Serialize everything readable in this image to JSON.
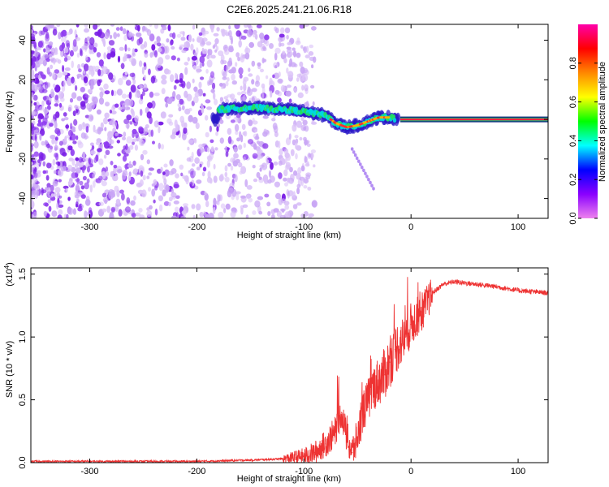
{
  "title": "C2E6.2025.241.21.06.R18",
  "chart_data": [
    {
      "type": "heatmap",
      "xlabel": "Height of straight line (km)",
      "ylabel": "Frequency (Hz)",
      "xlim": [
        -355,
        128
      ],
      "ylim": [
        -50,
        48
      ],
      "xticks": [
        -300,
        -200,
        -100,
        0,
        100
      ],
      "yticks": [
        -40,
        -20,
        0,
        20,
        40
      ],
      "colorbar": {
        "label": "Normalized spectral amplitude",
        "range": [
          0.0,
          1.0
        ],
        "ticks": [
          "0.0",
          "0.2",
          "0.4",
          "0.6",
          "0.8"
        ],
        "colormap": [
          "#ee82ee",
          "#8a00ff",
          "#0000ff",
          "#00ffff",
          "#00ff00",
          "#ffff00",
          "#ff8800",
          "#ff0000",
          "#ff00aa"
        ]
      },
      "features": {
        "noise_region_x": [
          -355,
          -120
        ],
        "signal_track": [
          {
            "x": -180,
            "y": 5
          },
          {
            "x": -150,
            "y": 6
          },
          {
            "x": -120,
            "y": 5
          },
          {
            "x": -100,
            "y": 4
          },
          {
            "x": -80,
            "y": 2
          },
          {
            "x": -70,
            "y": -2
          },
          {
            "x": -60,
            "y": -4
          },
          {
            "x": -50,
            "y": -3
          },
          {
            "x": -40,
            "y": -1
          },
          {
            "x": -30,
            "y": 1
          },
          {
            "x": -20,
            "y": 1
          },
          {
            "x": -10,
            "y": 0
          },
          {
            "x": 128,
            "y": 0
          }
        ],
        "branch": [
          {
            "x": -55,
            "y": -15
          },
          {
            "x": -35,
            "y": -35
          }
        ],
        "carrier_line_x": [
          -10,
          128
        ]
      }
    },
    {
      "type": "line",
      "xlabel": "Height of straight line (km)",
      "ylabel": "SNR (10 * v/v)",
      "scale_label": "(x10",
      "scale_exponent": "4",
      "scale_close": ")",
      "xlim": [
        -355,
        128
      ],
      "ylim": [
        0,
        1.55
      ],
      "xticks": [
        -300,
        -200,
        -100,
        0,
        100
      ],
      "yticks": [
        "0.0",
        "0.5",
        "1.0",
        "1.5"
      ],
      "color": "#ee3333",
      "x": [
        -355,
        -300,
        -250,
        -200,
        -150,
        -120,
        -100,
        -90,
        -80,
        -70,
        -65,
        -60,
        -55,
        -50,
        -45,
        -40,
        -35,
        -30,
        -25,
        -20,
        -15,
        -10,
        -5,
        0,
        10,
        20,
        30,
        40,
        50,
        60,
        80,
        100,
        128
      ],
      "values": [
        0.01,
        0.01,
        0.01,
        0.01,
        0.02,
        0.03,
        0.05,
        0.08,
        0.15,
        0.25,
        0.4,
        0.2,
        0.08,
        0.2,
        0.4,
        0.5,
        0.6,
        0.65,
        0.7,
        0.8,
        0.9,
        0.95,
        1.0,
        1.1,
        1.2,
        1.35,
        1.42,
        1.44,
        1.43,
        1.42,
        1.4,
        1.37,
        1.35
      ]
    }
  ]
}
